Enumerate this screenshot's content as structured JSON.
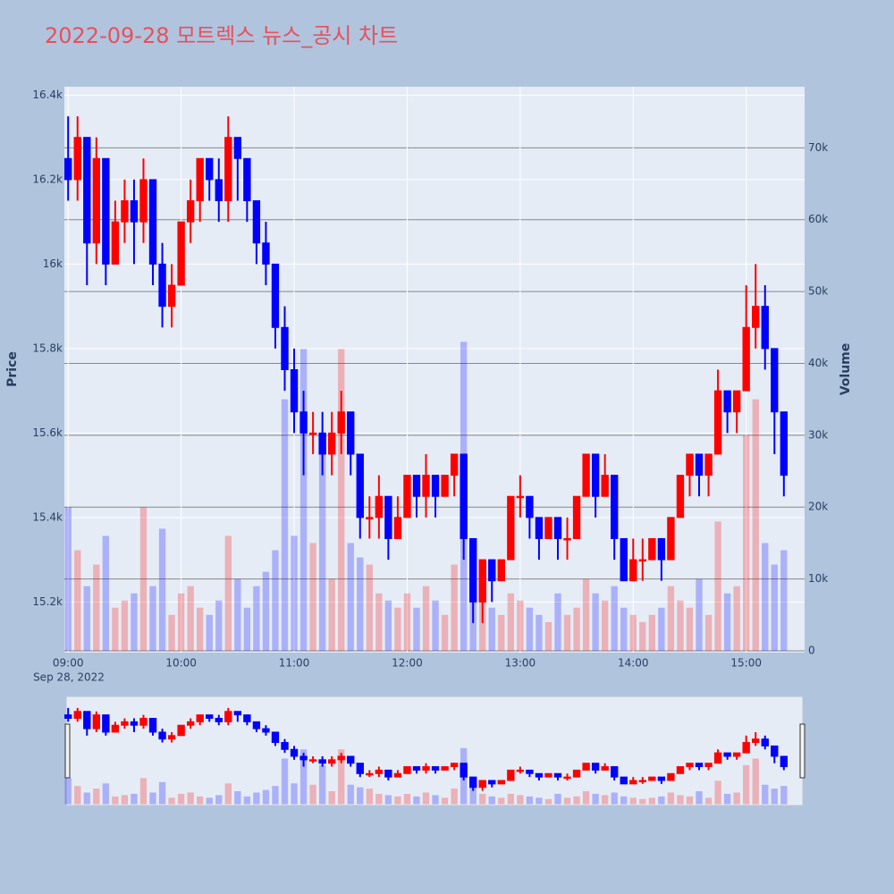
{
  "chart_data": {
    "type": "candlestick",
    "title": "2022-09-28 모트렉스 뉴스_공시 차트",
    "y_title": "Price",
    "y2_title": "Volume",
    "x_date_label": "Sep 28, 2022",
    "x": [
      "09:00",
      "09:05",
      "09:10",
      "09:15",
      "09:20",
      "09:25",
      "09:30",
      "09:35",
      "09:40",
      "09:45",
      "09:50",
      "09:55",
      "10:00",
      "10:05",
      "10:10",
      "10:15",
      "10:20",
      "10:25",
      "10:30",
      "10:35",
      "10:40",
      "10:45",
      "10:50",
      "10:55",
      "11:00",
      "11:05",
      "11:10",
      "11:15",
      "11:20",
      "11:25",
      "11:30",
      "11:35",
      "11:40",
      "11:45",
      "11:50",
      "11:55",
      "12:00",
      "12:05",
      "12:10",
      "12:15",
      "12:20",
      "12:25",
      "12:30",
      "12:35",
      "12:40",
      "12:45",
      "12:50",
      "12:55",
      "13:00",
      "13:05",
      "13:10",
      "13:15",
      "13:20",
      "13:25",
      "13:30",
      "13:35",
      "13:40",
      "13:45",
      "13:50",
      "13:55",
      "14:00",
      "14:05",
      "14:10",
      "14:15",
      "14:20",
      "14:25",
      "14:30",
      "14:35",
      "14:40",
      "14:45",
      "14:50",
      "14:55",
      "15:00",
      "15:05",
      "15:10",
      "15:15",
      "15:20"
    ],
    "open": [
      16250,
      16200,
      16300,
      16050,
      16250,
      16000,
      16100,
      16150,
      16100,
      16200,
      16000,
      15900,
      15950,
      16100,
      16150,
      16250,
      16200,
      16150,
      16300,
      16250,
      16150,
      16050,
      16000,
      15850,
      15750,
      15650,
      15600,
      15600,
      15550,
      15600,
      15650,
      15550,
      15400,
      15400,
      15450,
      15350,
      15400,
      15500,
      15450,
      15500,
      15450,
      15500,
      15550,
      15350,
      15200,
      15300,
      15250,
      15300,
      15450,
      15450,
      15400,
      15350,
      15400,
      15350,
      15350,
      15450,
      15550,
      15450,
      15500,
      15350,
      15250,
      15300,
      15300,
      15350,
      15300,
      15400,
      15500,
      15550,
      15500,
      15550,
      15700,
      15650,
      15700,
      15850,
      15900,
      15800,
      15650
    ],
    "high": [
      16350,
      16350,
      16300,
      16300,
      16250,
      16150,
      16200,
      16200,
      16250,
      16200,
      16050,
      16000,
      16100,
      16200,
      16250,
      16250,
      16250,
      16350,
      16300,
      16250,
      16150,
      16100,
      16000,
      15900,
      15800,
      15700,
      15650,
      15650,
      15650,
      15700,
      15650,
      15550,
      15450,
      15500,
      15450,
      15450,
      15500,
      15500,
      15550,
      15500,
      15500,
      15550,
      15550,
      15350,
      15300,
      15300,
      15300,
      15450,
      15500,
      15450,
      15400,
      15400,
      15400,
      15400,
      15450,
      15550,
      15550,
      15550,
      15500,
      15350,
      15350,
      15350,
      15350,
      15350,
      15400,
      15500,
      15550,
      15550,
      15550,
      15750,
      15700,
      15700,
      15950,
      16000,
      15950,
      15800,
      15650
    ],
    "low": [
      16150,
      16150,
      15950,
      16000,
      15950,
      16000,
      16050,
      16000,
      16050,
      15950,
      15850,
      15850,
      15950,
      16050,
      16100,
      16150,
      16100,
      16100,
      16150,
      16100,
      16000,
      15950,
      15800,
      15700,
      15600,
      15500,
      15550,
      15500,
      15500,
      15550,
      15500,
      15350,
      15350,
      15350,
      15300,
      15350,
      15400,
      15400,
      15400,
      15400,
      15450,
      15450,
      15300,
      15150,
      15150,
      15200,
      15250,
      15300,
      15400,
      15350,
      15300,
      15350,
      15300,
      15300,
      15350,
      15450,
      15400,
      15450,
      15300,
      15250,
      15250,
      15250,
      15300,
      15250,
      15300,
      15400,
      15450,
      15450,
      15450,
      15550,
      15600,
      15600,
      15700,
      15800,
      15750,
      15550,
      15450
    ],
    "close": [
      16200,
      16300,
      16050,
      16250,
      16000,
      16100,
      16150,
      16100,
      16200,
      16000,
      15900,
      15950,
      16100,
      16150,
      16250,
      16200,
      16150,
      16300,
      16250,
      16150,
      16050,
      16000,
      15850,
      15750,
      15650,
      15600,
      15600,
      15550,
      15600,
      15650,
      15550,
      15400,
      15400,
      15450,
      15350,
      15400,
      15500,
      15450,
      15500,
      15450,
      15500,
      15550,
      15350,
      15200,
      15300,
      15250,
      15300,
      15450,
      15450,
      15400,
      15350,
      15400,
      15350,
      15350,
      15450,
      15550,
      15450,
      15500,
      15350,
      15250,
      15300,
      15300,
      15350,
      15300,
      15400,
      15500,
      15550,
      15500,
      15550,
      15700,
      15650,
      15700,
      15850,
      15900,
      15800,
      15650,
      15500
    ],
    "volume": [
      20000,
      14000,
      9000,
      12000,
      16000,
      6000,
      7000,
      8000,
      20000,
      9000,
      17000,
      5000,
      8000,
      9000,
      6000,
      5000,
      7000,
      16000,
      10000,
      6000,
      9000,
      11000,
      14000,
      35000,
      16000,
      42000,
      15000,
      30000,
      10000,
      42000,
      15000,
      13000,
      12000,
      8000,
      7000,
      6000,
      8000,
      6000,
      9000,
      7000,
      5000,
      12000,
      43000,
      14000,
      8000,
      6000,
      5000,
      8000,
      7000,
      6000,
      5000,
      4000,
      8000,
      5000,
      6000,
      10000,
      8000,
      7000,
      9000,
      6000,
      5000,
      4000,
      5000,
      6000,
      9000,
      7000,
      6000,
      10000,
      5000,
      18000,
      8000,
      9000,
      30000,
      35000,
      15000,
      12000,
      14000
    ],
    "increasing_color": "#ff0000",
    "decreasing_color": "#0000ff",
    "xlim": [
      "08:58",
      "15:31"
    ],
    "xticks": [
      "09:00",
      "10:00",
      "11:00",
      "12:00",
      "13:00",
      "14:00",
      "15:00"
    ],
    "ylim": [
      15080,
      16420
    ],
    "yticks": [
      {
        "value": 15200,
        "label": "15.2k"
      },
      {
        "value": 15400,
        "label": "15.4k"
      },
      {
        "value": 15600,
        "label": "15.6k"
      },
      {
        "value": 15800,
        "label": "15.8k"
      },
      {
        "value": 16000,
        "label": "16k"
      },
      {
        "value": 16200,
        "label": "16.2k"
      },
      {
        "value": 16400,
        "label": "16.4k"
      }
    ],
    "y2lim": [
      -250,
      78500
    ],
    "y2ticks": [
      0,
      {
        "value": 10000,
        "label": "10k"
      },
      {
        "value": 20000,
        "label": "20k"
      },
      {
        "value": 30000,
        "label": "30k"
      },
      {
        "value": 40000,
        "label": "40k"
      },
      {
        "value": 50000,
        "label": "50k"
      },
      {
        "value": 60000,
        "label": "60k"
      },
      {
        "value": 70000,
        "label": "70k"
      }
    ],
    "rangeslider": true
  }
}
